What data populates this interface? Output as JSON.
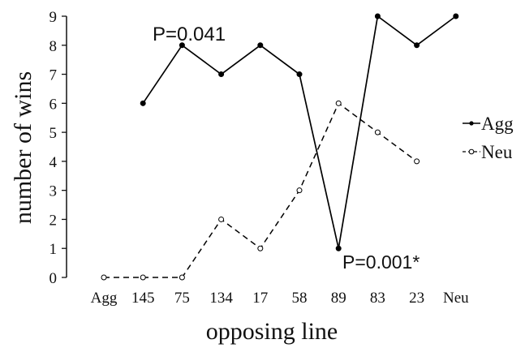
{
  "chart_data": {
    "type": "line",
    "title": "",
    "xlabel": "opposing line",
    "ylabel": "number of wins",
    "categories": [
      "Agg",
      "145",
      "75",
      "134",
      "17",
      "58",
      "89",
      "83",
      "23",
      "Neu"
    ],
    "ylim": [
      0,
      9
    ],
    "yticks": [
      0,
      1,
      2,
      3,
      4,
      5,
      6,
      7,
      8,
      9
    ],
    "grid": false,
    "legend_position": "right",
    "series": [
      {
        "name": "Agg",
        "style": "solid",
        "marker": "filled-circle",
        "color": "#000000",
        "values": [
          null,
          6,
          8,
          7,
          8,
          7,
          1,
          9,
          8,
          9
        ]
      },
      {
        "name": "Neu",
        "style": "dashed",
        "marker": "open-circle",
        "color": "#000000",
        "values": [
          0,
          0,
          0,
          2,
          1,
          3,
          6,
          5,
          4,
          null
        ]
      }
    ],
    "annotations": [
      {
        "text": "P=0.041",
        "category": "75",
        "y": 8
      },
      {
        "text": "P=0.001*",
        "category": "89",
        "y": 1
      }
    ]
  }
}
